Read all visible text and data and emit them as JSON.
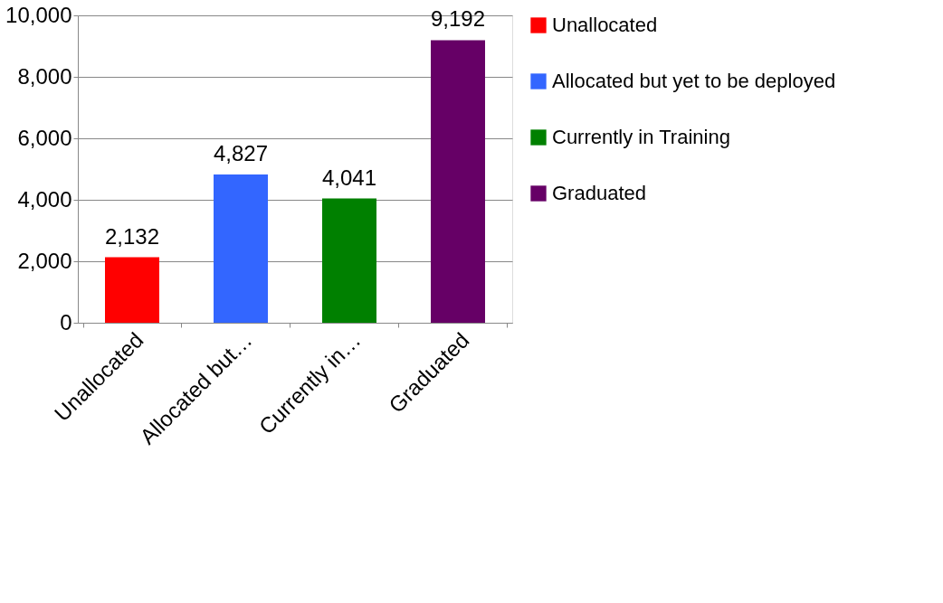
{
  "chart_data": {
    "type": "bar",
    "categories": [
      "Unallocated",
      "Allocated but…",
      "Currently in…",
      "Graduated"
    ],
    "series": [
      {
        "name": "Unallocated",
        "color": "#ff0000",
        "values": [
          2132,
          null,
          null,
          null
        ],
        "value_labels": [
          "2,132",
          null,
          null,
          null
        ]
      },
      {
        "name": "Allocated but yet to be deployed",
        "color": "#3366ff",
        "values": [
          null,
          4827,
          null,
          null
        ],
        "value_labels": [
          null,
          "4,827",
          null,
          null
        ]
      },
      {
        "name": "Currently in Training",
        "color": "#008000",
        "values": [
          null,
          null,
          4041,
          null
        ],
        "value_labels": [
          null,
          null,
          "4,041",
          null
        ]
      },
      {
        "name": "Graduated",
        "color": "#660066",
        "values": [
          null,
          null,
          null,
          9192
        ],
        "value_labels": [
          null,
          null,
          null,
          "9,192"
        ]
      }
    ],
    "ylim": [
      0,
      10000
    ],
    "yticks": [
      0,
      {
        "value": 2000,
        "label": "2,000"
      },
      {
        "value": 4000,
        "label": "4,000"
      },
      {
        "value": 6000,
        "label": "6,000"
      },
      {
        "value": 8000,
        "label": "8,000"
      },
      {
        "value": 10000,
        "label": "10,000"
      }
    ],
    "grid": "y",
    "legend": "right"
  }
}
